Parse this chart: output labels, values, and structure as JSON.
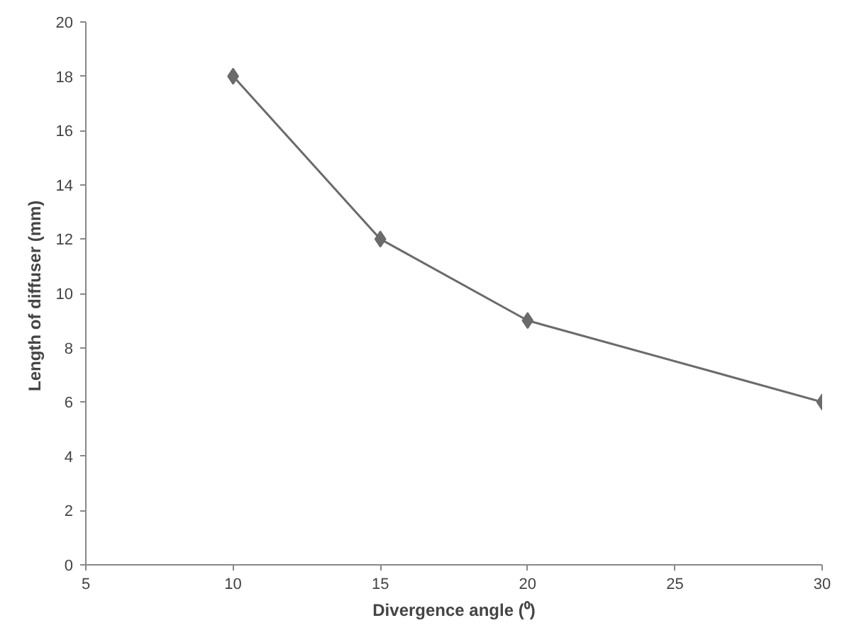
{
  "chart_data": {
    "type": "line",
    "xlabel": "Divergence angle (⁰)",
    "ylabel": "Length of diffuser  (mm)",
    "x": [
      10,
      15,
      20,
      30
    ],
    "series": [
      {
        "color": "#6b6b6b",
        "values": [
          18,
          12,
          9,
          6
        ]
      }
    ],
    "xlim": [
      5,
      30
    ],
    "xticks": [
      5,
      10,
      15,
      20,
      25,
      30
    ],
    "ylim": [
      0,
      20
    ],
    "yticks": [
      0,
      2,
      4,
      6,
      8,
      10,
      12,
      14,
      16,
      18,
      20
    ],
    "grid": false,
    "marker": "diamond",
    "line_style": "solid"
  }
}
